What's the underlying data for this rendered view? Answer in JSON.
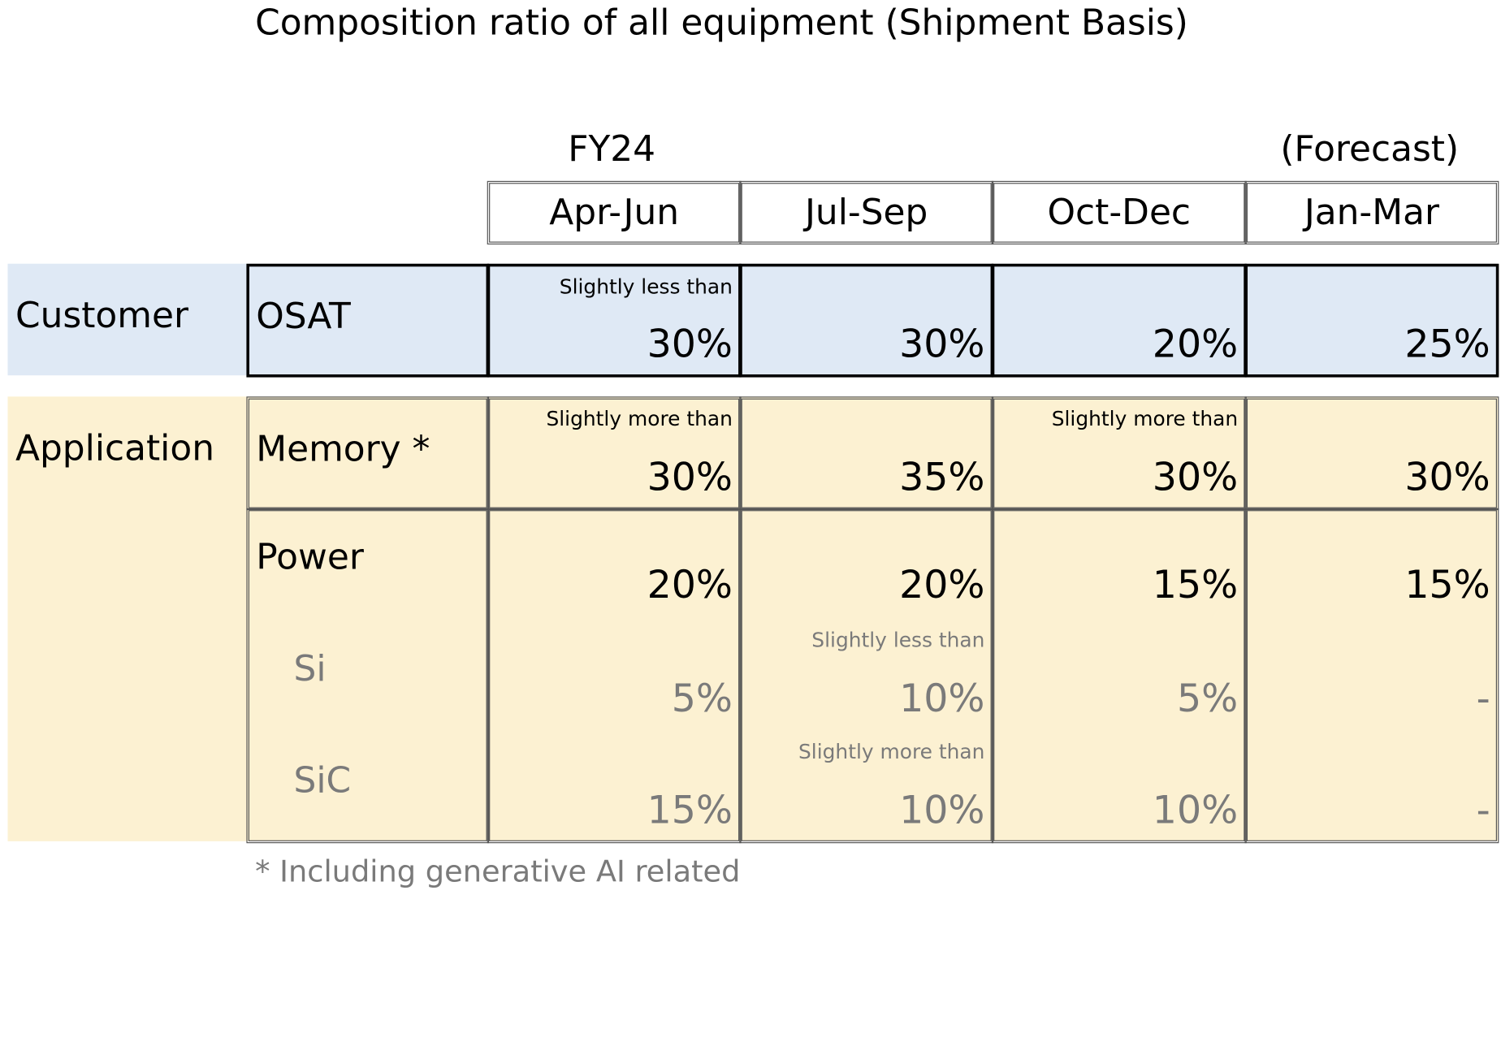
{
  "title": "Composition ratio of all equipment (Shipment Basis)",
  "fy_label": "FY24",
  "forecast_label": "(Forecast)",
  "columns": [
    "Apr-Jun",
    "Jul-Sep",
    "Oct-Dec",
    "Jan-Mar"
  ],
  "sections": {
    "customer": "Customer",
    "application": "Application"
  },
  "rows": {
    "osat": {
      "label": "OSAT",
      "notes": [
        "Slightly less than",
        "",
        "",
        ""
      ],
      "values": [
        "30%",
        "30%",
        "20%",
        "25%"
      ]
    },
    "memory": {
      "label": "Memory *",
      "notes": [
        "Slightly more than",
        "",
        "Slightly more than",
        ""
      ],
      "values": [
        "30%",
        "35%",
        "30%",
        "30%"
      ]
    },
    "power": {
      "label": "Power",
      "values": [
        "20%",
        "20%",
        "15%",
        "15%"
      ]
    },
    "si": {
      "label": "Si",
      "notes": [
        "",
        "Slightly less than",
        "",
        ""
      ],
      "values": [
        "5%",
        "10%",
        "5%",
        "-"
      ]
    },
    "sic": {
      "label": "SiC",
      "notes": [
        "",
        "Slightly more than",
        "",
        ""
      ],
      "values": [
        "15%",
        "10%",
        "10%",
        "-"
      ]
    }
  },
  "footnote": "* Including generative AI related",
  "colors": {
    "customer_band": "#dfe9f5",
    "application_band": "#fcf1d2",
    "sub_text": "#7a7a7a"
  }
}
